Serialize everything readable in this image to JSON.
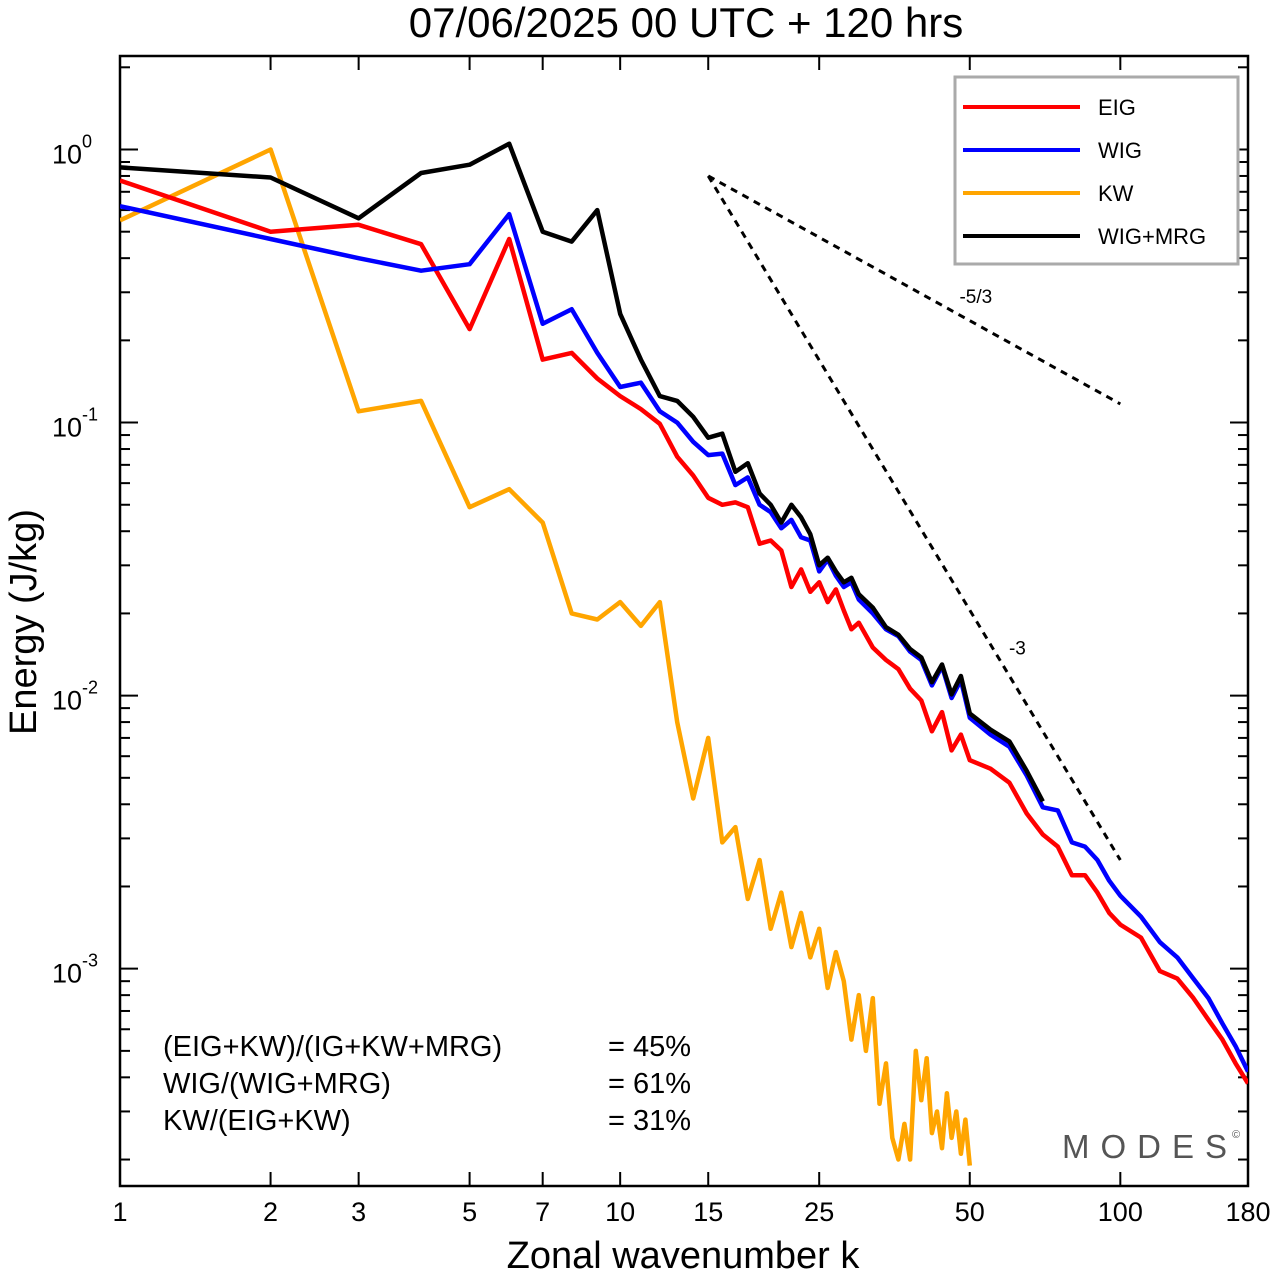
{
  "chart_data": {
    "type": "line",
    "title": "07/06/2025  00 UTC  + 120 hrs",
    "xlabel": "Zonal wavenumber k",
    "ylabel": "Energy (J/kg)",
    "xscale": "log",
    "yscale": "log",
    "xlim": [
      1,
      180
    ],
    "ylim": [
      0.00016,
      2.2
    ],
    "xticks": [
      1,
      2,
      3,
      5,
      7,
      10,
      15,
      25,
      50,
      100,
      180
    ],
    "xticklabels": [
      "1",
      "2",
      "3",
      "5",
      "7",
      "10",
      "15",
      "25",
      "50",
      "100",
      "180"
    ],
    "yticks": [
      {
        "value": 1,
        "base": "10",
        "exp": "0"
      },
      {
        "value": 0.1,
        "base": "10",
        "exp": "-1"
      },
      {
        "value": 0.01,
        "base": "10",
        "exp": "-2"
      },
      {
        "value": 0.001,
        "base": "10",
        "exp": "-3"
      }
    ],
    "grid": false,
    "legend_position": "top-right",
    "series": [
      {
        "name": "EIG",
        "color": "#ff0000",
        "x": [
          1,
          2,
          3,
          4,
          5,
          6,
          7,
          8,
          9,
          10,
          11,
          12,
          13,
          14,
          15,
          16,
          17,
          18,
          19,
          20,
          21,
          22,
          23,
          24,
          25,
          26,
          27,
          28,
          29,
          30,
          32,
          34,
          36,
          38,
          40,
          42,
          44,
          46,
          48,
          50,
          55,
          60,
          65,
          70,
          75,
          80,
          85,
          90,
          95,
          100,
          110,
          120,
          130,
          140,
          150,
          160,
          170,
          180
        ],
        "y": [
          0.77,
          0.5,
          0.53,
          0.45,
          0.22,
          0.47,
          0.17,
          0.18,
          0.145,
          0.125,
          0.112,
          0.099,
          0.075,
          0.064,
          0.053,
          0.05,
          0.051,
          0.049,
          0.036,
          0.037,
          0.034,
          0.025,
          0.029,
          0.024,
          0.026,
          0.022,
          0.0245,
          0.0205,
          0.0175,
          0.0185,
          0.015,
          0.0135,
          0.0125,
          0.0106,
          0.0096,
          0.0074,
          0.0087,
          0.0063,
          0.0072,
          0.0058,
          0.0054,
          0.0048,
          0.0037,
          0.0031,
          0.0028,
          0.0022,
          0.0022,
          0.0019,
          0.0016,
          0.00145,
          0.0013,
          0.00098,
          0.00092,
          0.00078,
          0.00065,
          0.00055,
          0.00045,
          0.00038
        ]
      },
      {
        "name": "WIG",
        "color": "#0000ff",
        "x": [
          1,
          2,
          3,
          4,
          5,
          6,
          7,
          8,
          9,
          10,
          11,
          12,
          13,
          14,
          15,
          16,
          17,
          18,
          19,
          20,
          21,
          22,
          23,
          24,
          25,
          26,
          27,
          28,
          29,
          30,
          32,
          34,
          36,
          38,
          40,
          42,
          44,
          46,
          48,
          50,
          55,
          60,
          65,
          70,
          75,
          80,
          85,
          90,
          95,
          100,
          110,
          120,
          130,
          140,
          150,
          160,
          170,
          180
        ],
        "y": [
          0.62,
          0.47,
          0.4,
          0.36,
          0.38,
          0.58,
          0.23,
          0.26,
          0.18,
          0.135,
          0.14,
          0.11,
          0.1,
          0.085,
          0.076,
          0.077,
          0.059,
          0.063,
          0.05,
          0.047,
          0.041,
          0.044,
          0.038,
          0.037,
          0.0285,
          0.0315,
          0.0275,
          0.025,
          0.026,
          0.0225,
          0.02,
          0.0175,
          0.0165,
          0.0145,
          0.0135,
          0.0109,
          0.0128,
          0.0098,
          0.0114,
          0.0083,
          0.0072,
          0.0065,
          0.0051,
          0.0039,
          0.0038,
          0.0029,
          0.0028,
          0.0025,
          0.0021,
          0.00185,
          0.00155,
          0.00125,
          0.0011,
          0.00092,
          0.00078,
          0.00063,
          0.00052,
          0.00042
        ]
      },
      {
        "name": "KW",
        "color": "#ffa500",
        "x": [
          1,
          2,
          3,
          4,
          5,
          6,
          7,
          8,
          9,
          10,
          11,
          12,
          13,
          14,
          15,
          16,
          17,
          18,
          19,
          20,
          21,
          22,
          23,
          24,
          25,
          26,
          27,
          28,
          29,
          30,
          31,
          32,
          33,
          34,
          35,
          36,
          37,
          38,
          39,
          40,
          41,
          42,
          43,
          44,
          45,
          46,
          47,
          48,
          49,
          50
        ],
        "y": [
          0.55,
          1.0,
          0.11,
          0.12,
          0.049,
          0.057,
          0.043,
          0.02,
          0.019,
          0.022,
          0.018,
          0.022,
          0.008,
          0.0042,
          0.007,
          0.0029,
          0.0033,
          0.0018,
          0.0025,
          0.0014,
          0.0019,
          0.0012,
          0.0016,
          0.0011,
          0.0014,
          0.00085,
          0.00115,
          0.0009,
          0.00055,
          0.0008,
          0.0005,
          0.00078,
          0.00032,
          0.00045,
          0.00024,
          0.0002,
          0.00027,
          0.0002,
          0.0005,
          0.00033,
          0.00047,
          0.00025,
          0.0003,
          0.00022,
          0.00035,
          0.00024,
          0.0003,
          0.00021,
          0.00028,
          0.00019
        ]
      },
      {
        "name": "WIG+MRG",
        "color": "#000000",
        "x": [
          1,
          2,
          3,
          4,
          5,
          6,
          7,
          8,
          9,
          10,
          11,
          12,
          13,
          14,
          15,
          16,
          17,
          18,
          19,
          20,
          21,
          22,
          23,
          24,
          25,
          26,
          27,
          28,
          29,
          30,
          32,
          34,
          36,
          38,
          40,
          42,
          44,
          46,
          48,
          50,
          55,
          60,
          65,
          70
        ],
        "y": [
          0.86,
          0.79,
          0.56,
          0.82,
          0.88,
          1.05,
          0.5,
          0.46,
          0.6,
          0.25,
          0.17,
          0.125,
          0.12,
          0.105,
          0.088,
          0.091,
          0.066,
          0.071,
          0.055,
          0.05,
          0.043,
          0.05,
          0.045,
          0.039,
          0.03,
          0.032,
          0.0285,
          0.026,
          0.027,
          0.0235,
          0.021,
          0.0178,
          0.0167,
          0.0148,
          0.0138,
          0.0112,
          0.013,
          0.0101,
          0.0118,
          0.0086,
          0.0075,
          0.0068,
          0.0053,
          0.0041
        ]
      }
    ],
    "reference_slopes": [
      {
        "label": "-5/3",
        "x_start": 15,
        "y_start": 0.8,
        "x_end": 100,
        "y_end": 0.117
      },
      {
        "label": "-3",
        "x_start": 15,
        "y_start": 0.8,
        "x_end": 100,
        "y_end": 0.0025
      }
    ],
    "annotations": [
      {
        "label": "(EIG+KW)/(IG+KW+MRG)",
        "value": "= 45%"
      },
      {
        "label": "WIG/(WIG+MRG)",
        "value": "= 61%"
      },
      {
        "label": "KW/(EIG+KW)",
        "value": "= 31%"
      }
    ],
    "watermark": "MODES",
    "watermark_mark": "©"
  }
}
